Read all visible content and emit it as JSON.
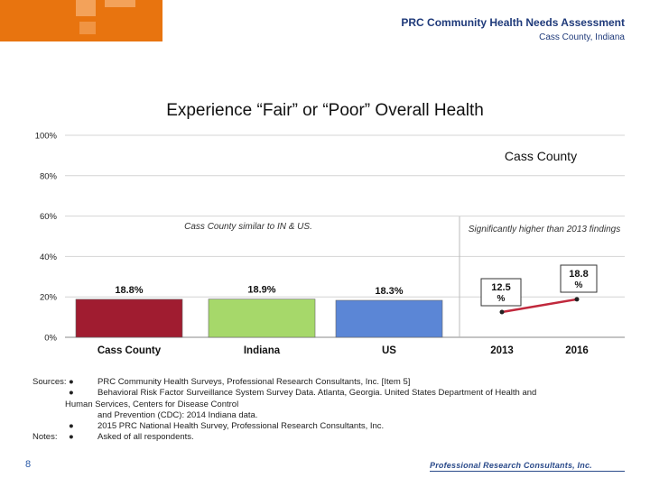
{
  "header": {
    "title": "PRC Community Health Needs Assessment",
    "subtitle": "Cass County, Indiana"
  },
  "chart_data": {
    "type": "bar",
    "title": "Experience “Fair” or “Poor” Overall Health",
    "ylim": [
      0,
      100
    ],
    "yticks": [
      "0%",
      "20%",
      "40%",
      "60%",
      "80%",
      "100%"
    ],
    "grid": true,
    "bars": {
      "categories": [
        "Cass County",
        "Indiana",
        "US"
      ],
      "values": [
        18.8,
        18.9,
        18.3
      ],
      "labels": [
        "18.8%",
        "18.9%",
        "18.3%"
      ],
      "colors": [
        "#a01c30",
        "#a6d86a",
        "#5b86d6"
      ],
      "annotation": "Cass County similar to IN & US."
    },
    "trend": {
      "type": "line",
      "name": "Cass County",
      "x": [
        "2013",
        "2016"
      ],
      "values": [
        12.5,
        18.8
      ],
      "labels": [
        "12.5 %",
        "18.8 %"
      ],
      "color": "#c0283c",
      "annotation": "Significantly higher than 2013 findings"
    }
  },
  "sources": {
    "label": "Sources:",
    "items": [
      "PRC Community Health Surveys, Professional Research Consultants, Inc. [Item 5]",
      "Behavioral Risk Factor Surveillance System Survey Data. Atlanta, Georgia. United States Department of Health and",
      "2015 PRC National Health Survey, Professional Research Consultants, Inc."
    ],
    "item2_cont": [
      "Human Services, Centers for Disease Control",
      "and Prevention (CDC): 2014 Indiana data."
    ],
    "notes_label": "Notes:",
    "notes": "Asked of all respondents.",
    "bullet": "●"
  },
  "footer": {
    "page": "8",
    "logo_text": "Professional Research Consultants, Inc."
  }
}
